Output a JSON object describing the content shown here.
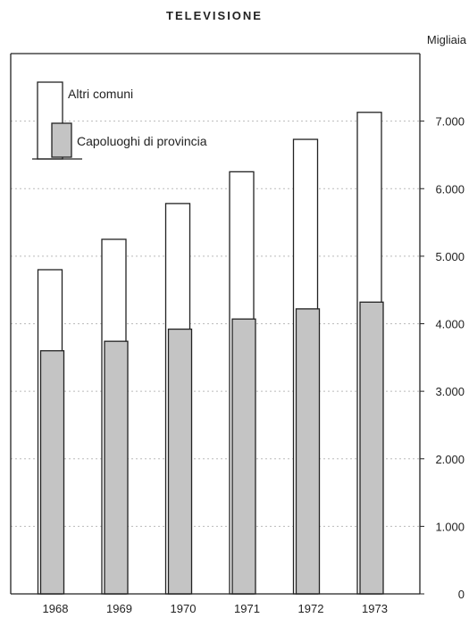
{
  "chart_data": {
    "type": "bar",
    "title": "TELEVISIONE",
    "unit_label": "Migliaia",
    "categories": [
      "1968",
      "1969",
      "1970",
      "1971",
      "1972",
      "1973"
    ],
    "series": [
      {
        "name": "Altri comuni",
        "values": [
          4800,
          5250,
          5780,
          6250,
          6730,
          7130
        ],
        "fill": "#ffffff"
      },
      {
        "name": "Capoluoghi di provincia",
        "values": [
          3600,
          3740,
          3920,
          4070,
          4220,
          4320
        ],
        "fill": "#c4c4c4"
      }
    ],
    "yticks": [
      {
        "value": 0,
        "label": "0"
      },
      {
        "value": 1000,
        "label": "1.000"
      },
      {
        "value": 2000,
        "label": "2.000"
      },
      {
        "value": 3000,
        "label": "3.000"
      },
      {
        "value": 4000,
        "label": "4.000"
      },
      {
        "value": 5000,
        "label": "5.000"
      },
      {
        "value": 6000,
        "label": "6.000"
      },
      {
        "value": 7000,
        "label": "7.000"
      }
    ],
    "ylim": [
      0,
      8000
    ],
    "grid": true,
    "legend_position": "top-left",
    "colors": {
      "axis": "#222222",
      "grid": "#bbbbbb",
      "bar_outline": "#222222"
    }
  }
}
